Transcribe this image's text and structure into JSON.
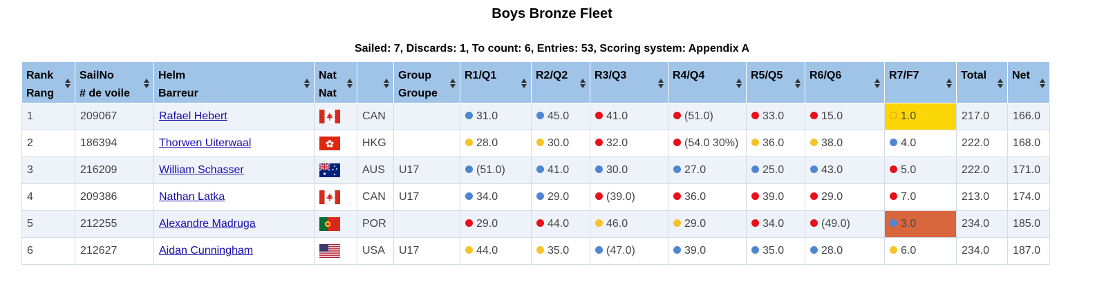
{
  "title": "Boys Bronze Fleet",
  "meta": "Sailed: 7, Discards: 1, To count: 6, Entries: 53, Scoring system: Appendix A",
  "colors": {
    "header_bg": "#9fc4e8",
    "blue": "#4f86d0",
    "red": "#e8101a",
    "yellow": "#f6c42a",
    "highlight_first": "#fcd707",
    "highlight_third": "#d9673e"
  },
  "headers": [
    {
      "l1": "Rank",
      "l2": "Rang"
    },
    {
      "l1": "SailNo",
      "l2": "# de voile"
    },
    {
      "l1": "Helm",
      "l2": "Barreur"
    },
    {
      "l1": "Nat",
      "l2": "Nat"
    },
    {
      "l1": "",
      "l2": ""
    },
    {
      "l1": "Group",
      "l2": "Groupe"
    },
    {
      "l1": "R1/Q1",
      "l2": ""
    },
    {
      "l1": "R2/Q2",
      "l2": ""
    },
    {
      "l1": "R3/Q3",
      "l2": ""
    },
    {
      "l1": "R4/Q4",
      "l2": ""
    },
    {
      "l1": "R5/Q5",
      "l2": ""
    },
    {
      "l1": "R6/Q6",
      "l2": ""
    },
    {
      "l1": "R7/F7",
      "l2": ""
    },
    {
      "l1": "Total",
      "l2": ""
    },
    {
      "l1": "Net",
      "l2": ""
    }
  ],
  "rows": [
    {
      "rank": "1",
      "sail": "209067",
      "helm": "Rafael Hebert",
      "flag": "canada-flag-icon",
      "nat": "CAN",
      "group": "",
      "races": [
        {
          "c": "blue",
          "v": "31.0"
        },
        {
          "c": "blue",
          "v": "45.0"
        },
        {
          "c": "red",
          "v": "41.0"
        },
        {
          "c": "red",
          "v": "(51.0)"
        },
        {
          "c": "red",
          "v": "33.0"
        },
        {
          "c": "red",
          "v": "15.0"
        },
        {
          "c": "hollow",
          "v": "1.0",
          "hl": "yellow"
        }
      ],
      "total": "217.0",
      "net": "166.0"
    },
    {
      "rank": "2",
      "sail": "186394",
      "helm": "Thorwen Uiterwaal",
      "flag": "hong-kong-flag-icon",
      "nat": "HKG",
      "group": "",
      "races": [
        {
          "c": "yellow",
          "v": "28.0"
        },
        {
          "c": "yellow",
          "v": "30.0"
        },
        {
          "c": "red",
          "v": "32.0"
        },
        {
          "c": "red",
          "v": "(54.0 30%)"
        },
        {
          "c": "yellow",
          "v": "36.0"
        },
        {
          "c": "yellow",
          "v": "38.0"
        },
        {
          "c": "blue",
          "v": "4.0"
        }
      ],
      "total": "222.0",
      "net": "168.0"
    },
    {
      "rank": "3",
      "sail": "216209",
      "helm": "William Schasser",
      "flag": "australia-flag-icon",
      "nat": "AUS",
      "group": "U17",
      "races": [
        {
          "c": "blue",
          "v": "(51.0)"
        },
        {
          "c": "blue",
          "v": "41.0"
        },
        {
          "c": "blue",
          "v": "30.0"
        },
        {
          "c": "blue",
          "v": "27.0"
        },
        {
          "c": "blue",
          "v": "25.0"
        },
        {
          "c": "blue",
          "v": "43.0"
        },
        {
          "c": "red",
          "v": "5.0"
        }
      ],
      "total": "222.0",
      "net": "171.0"
    },
    {
      "rank": "4",
      "sail": "209386",
      "helm": "Nathan Latka",
      "flag": "canada-flag-icon",
      "nat": "CAN",
      "group": "U17",
      "races": [
        {
          "c": "blue",
          "v": "34.0"
        },
        {
          "c": "blue",
          "v": "29.0"
        },
        {
          "c": "red",
          "v": "(39.0)"
        },
        {
          "c": "red",
          "v": "36.0"
        },
        {
          "c": "red",
          "v": "39.0"
        },
        {
          "c": "red",
          "v": "29.0"
        },
        {
          "c": "red",
          "v": "7.0"
        }
      ],
      "total": "213.0",
      "net": "174.0"
    },
    {
      "rank": "5",
      "sail": "212255",
      "helm": "Alexandre Madruga",
      "flag": "portugal-flag-icon",
      "nat": "POR",
      "group": "",
      "races": [
        {
          "c": "red",
          "v": "29.0"
        },
        {
          "c": "red",
          "v": "44.0"
        },
        {
          "c": "yellow",
          "v": "46.0"
        },
        {
          "c": "yellow",
          "v": "29.0"
        },
        {
          "c": "red",
          "v": "34.0"
        },
        {
          "c": "red",
          "v": "(49.0)"
        },
        {
          "c": "blue",
          "v": "3.0",
          "hl": "orange"
        }
      ],
      "total": "234.0",
      "net": "185.0"
    },
    {
      "rank": "6",
      "sail": "212627",
      "helm": "Aidan Cunningham",
      "flag": "usa-flag-icon",
      "nat": "USA",
      "group": "U17",
      "races": [
        {
          "c": "yellow",
          "v": "44.0"
        },
        {
          "c": "yellow",
          "v": "35.0"
        },
        {
          "c": "blue",
          "v": "(47.0)"
        },
        {
          "c": "blue",
          "v": "39.0"
        },
        {
          "c": "blue",
          "v": "35.0"
        },
        {
          "c": "blue",
          "v": "28.0"
        },
        {
          "c": "yellow",
          "v": "6.0"
        }
      ],
      "total": "234.0",
      "net": "187.0"
    }
  ]
}
